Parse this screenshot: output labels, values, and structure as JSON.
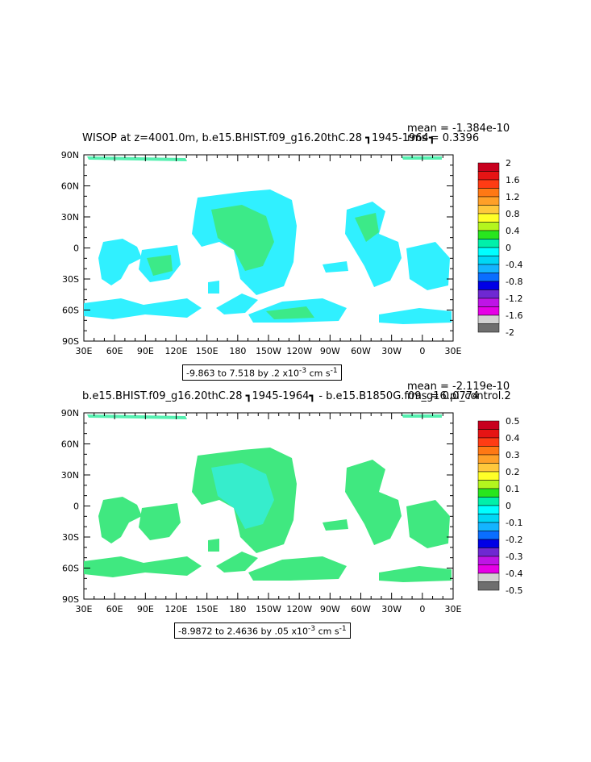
{
  "chart_data": [
    {
      "type": "heatmap",
      "title": "WISOP at z=4001.0m, b.e15.BHIST.f09_g16.20thC.28 ┓1945-1964┓",
      "stats": {
        "mean": "mean = -1.384e-10",
        "rms": "rms = 0.3396"
      },
      "x_ticks": [
        "30E",
        "60E",
        "90E",
        "120E",
        "150E",
        "180",
        "150W",
        "120W",
        "90W",
        "60W",
        "30W",
        "0",
        "30E"
      ],
      "y_ticks": [
        "90N",
        "60N",
        "30N",
        "0",
        "30S",
        "60S",
        "90S"
      ],
      "colorbar": {
        "labels": [
          "2",
          "1.6",
          "1.2",
          "0.8",
          "0.4",
          "0",
          "-0.4",
          "-0.8",
          "-1.2",
          "-1.6",
          "-2"
        ],
        "colors": [
          "#c8001e",
          "#e61414",
          "#ff3c14",
          "#ff7814",
          "#ffa028",
          "#ffc83c",
          "#ffff28",
          "#b4f51e",
          "#28e61e",
          "#00f0aa",
          "#00ffff",
          "#00d7f5",
          "#14b4ff",
          "#0a6eff",
          "#0000e6",
          "#6e28d2",
          "#be14e6",
          "#e600e6",
          "#d2d2d2",
          "#6e6e6e"
        ]
      },
      "range_note": "-9.863 to 7.518 by .2 x10",
      "range_exp": "-3",
      "range_unit": " cm s",
      "range_unit_exp": "-1"
    },
    {
      "type": "heatmap",
      "title": "b.e15.BHIST.f09_g16.20thC.28 ┓1945-1964┓ - b.e15.B1850G.f09_g16.pi_control.2",
      "stats": {
        "mean": "mean = -2.119e-10",
        "rms": "rms = 0.0774"
      },
      "x_ticks": [
        "30E",
        "60E",
        "90E",
        "120E",
        "150E",
        "180",
        "150W",
        "120W",
        "90W",
        "60W",
        "30W",
        "0",
        "30E"
      ],
      "y_ticks": [
        "90N",
        "60N",
        "30N",
        "0",
        "30S",
        "60S",
        "90S"
      ],
      "colorbar": {
        "labels": [
          "0.5",
          "0.4",
          "0.3",
          "0.2",
          "0.1",
          "0",
          "-0.1",
          "-0.2",
          "-0.3",
          "-0.4",
          "-0.5"
        ],
        "colors": [
          "#c8001e",
          "#e61414",
          "#ff3c14",
          "#ff7814",
          "#ffa028",
          "#ffc83c",
          "#ffff28",
          "#b4f51e",
          "#28e61e",
          "#00f0aa",
          "#00ffff",
          "#00d7f5",
          "#14b4ff",
          "#0a6eff",
          "#0000e6",
          "#6e28d2",
          "#be14e6",
          "#e600e6",
          "#d2d2d2",
          "#6e6e6e"
        ]
      },
      "range_note": "-8.9872 to 2.4636 by .05 x10",
      "range_exp": "-3",
      "range_unit": " cm s",
      "range_unit_exp": "-1"
    }
  ]
}
